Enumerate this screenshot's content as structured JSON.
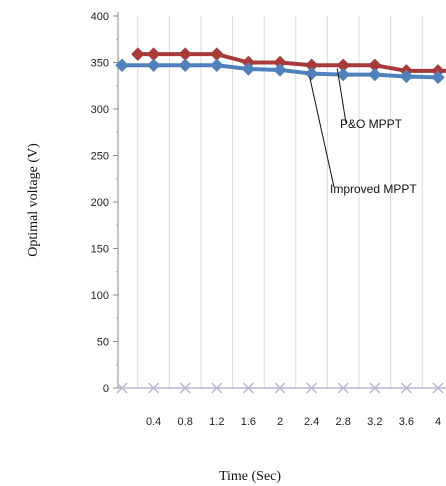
{
  "chart_data": {
    "type": "line",
    "title": "",
    "xlabel": "Time (Sec)",
    "ylabel": "Optimal voltage (V)",
    "x": [
      "0.4",
      "0.8",
      "1.2",
      "1.6",
      "2",
      "2.4",
      "2.8",
      "3.2",
      "3.6",
      "4"
    ],
    "y_ticks": [
      0,
      50,
      100,
      150,
      200,
      250,
      300,
      350,
      400
    ],
    "ylim": [
      0,
      400
    ],
    "grid": "vertical",
    "legend": "none",
    "series": [
      {
        "name": "P&O MPPT",
        "color": "#a83a3a",
        "marker": "diamond",
        "x": [
          0.2,
          0.4,
          0.8,
          1.2,
          1.6,
          2.0,
          2.4,
          2.8,
          3.2,
          3.6,
          4.0,
          4.2
        ],
        "values": [
          359,
          359,
          359,
          359,
          350,
          350,
          347,
          347,
          347,
          341,
          341,
          341
        ]
      },
      {
        "name": "Improved MPPT",
        "color": "#4f81bd",
        "marker": "diamond",
        "x": [
          0.0,
          0.4,
          0.8,
          1.2,
          1.6,
          2.0,
          2.4,
          2.8,
          3.2,
          3.6,
          4.0
        ],
        "values": [
          347,
          347,
          347,
          347,
          343,
          342,
          338,
          337,
          337,
          335,
          334
        ]
      },
      {
        "name": "",
        "color": "#b8b8d0",
        "marker": "x",
        "x": [
          0.0,
          0.4,
          0.8,
          1.2,
          1.6,
          2.0,
          2.4,
          2.8,
          3.2,
          3.6,
          4.0,
          4.2
        ],
        "values": [
          0,
          0,
          0,
          0,
          0,
          0,
          0,
          0,
          0,
          0,
          0,
          0
        ]
      }
    ],
    "annotations": [
      {
        "text": "P&O MPPT",
        "points_to": {
          "x": 2.8,
          "y": 347
        }
      },
      {
        "text": "Improved MPPT",
        "points_to": {
          "x": 2.4,
          "y": 338
        }
      }
    ]
  }
}
